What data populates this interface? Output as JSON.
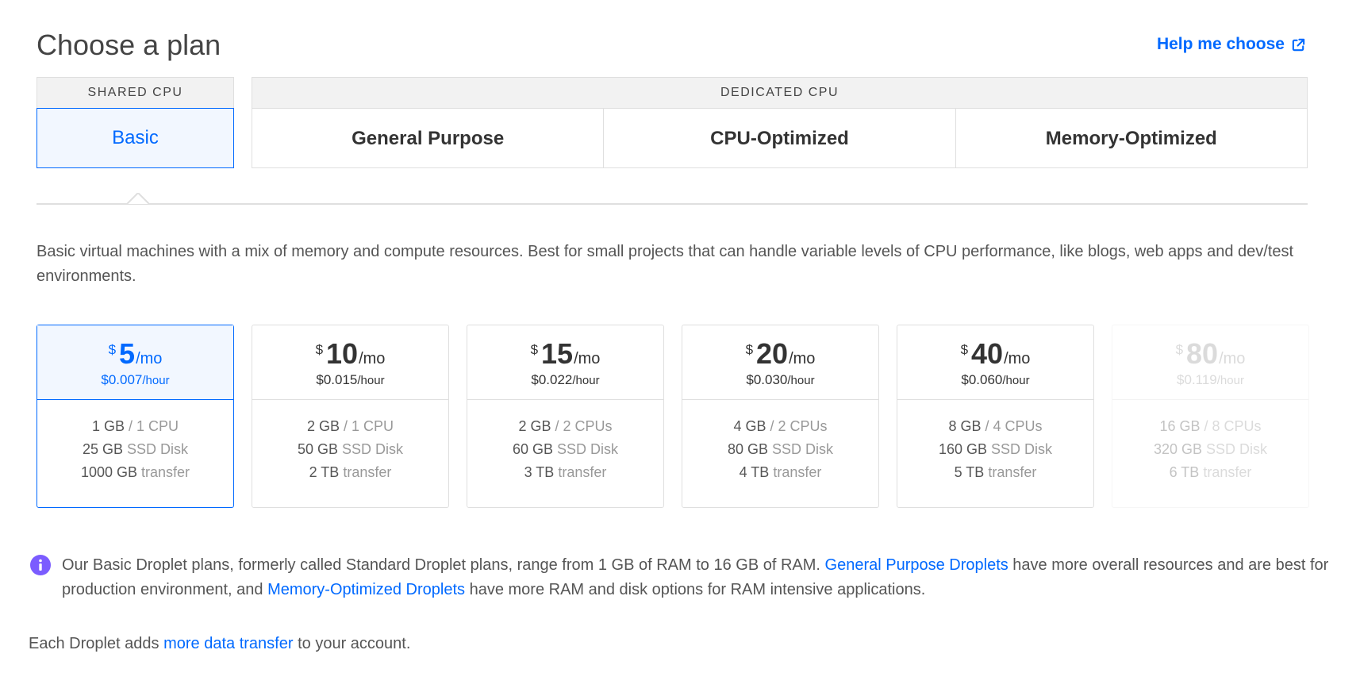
{
  "header": {
    "title": "Choose a plan",
    "help_label": "Help me choose",
    "help_icon": "external-link-icon"
  },
  "categories": {
    "shared": {
      "label": "SHARED CPU",
      "tabs": [
        "Basic"
      ]
    },
    "dedicated": {
      "label": "DEDICATED CPU",
      "tabs": [
        "General Purpose",
        "CPU-Optimized",
        "Memory-Optimized"
      ]
    }
  },
  "selected_tab": "Basic",
  "description": "Basic virtual machines with a mix of memory and compute resources. Best for small projects that can handle variable levels of CPU performance, like blogs, web apps and dev/test environments.",
  "plans": [
    {
      "currency": "$",
      "price": "5",
      "period": "/mo",
      "hourly": "$0.007",
      "hour_unit": "/hour",
      "memory": "1 GB",
      "cpu": "/ 1 CPU",
      "disk": "25 GB",
      "disk_label": "SSD Disk",
      "transfer": "1000 GB",
      "transfer_label": "transfer",
      "state": "selected"
    },
    {
      "currency": "$",
      "price": "10",
      "period": "/mo",
      "hourly": "$0.015",
      "hour_unit": "/hour",
      "memory": "2 GB",
      "cpu": "/ 1 CPU",
      "disk": "50 GB",
      "disk_label": "SSD Disk",
      "transfer": "2 TB",
      "transfer_label": "transfer",
      "state": "default"
    },
    {
      "currency": "$",
      "price": "15",
      "period": "/mo",
      "hourly": "$0.022",
      "hour_unit": "/hour",
      "memory": "2 GB",
      "cpu": "/ 2 CPUs",
      "disk": "60 GB",
      "disk_label": "SSD Disk",
      "transfer": "3 TB",
      "transfer_label": "transfer",
      "state": "default"
    },
    {
      "currency": "$",
      "price": "20",
      "period": "/mo",
      "hourly": "$0.030",
      "hour_unit": "/hour",
      "memory": "4 GB",
      "cpu": "/ 2 CPUs",
      "disk": "80 GB",
      "disk_label": "SSD Disk",
      "transfer": "4 TB",
      "transfer_label": "transfer",
      "state": "default"
    },
    {
      "currency": "$",
      "price": "40",
      "period": "/mo",
      "hourly": "$0.060",
      "hour_unit": "/hour",
      "memory": "8 GB",
      "cpu": "/ 4 CPUs",
      "disk": "160 GB",
      "disk_label": "SSD Disk",
      "transfer": "5 TB",
      "transfer_label": "transfer",
      "state": "default"
    },
    {
      "currency": "$",
      "price": "80",
      "period": "/mo",
      "hourly": "$0.119",
      "hour_unit": "/hour",
      "memory": "16 GB",
      "cpu": "/ 8 CPUs",
      "disk": "320 GB",
      "disk_label": "SSD Disk",
      "transfer": "6 TB",
      "transfer_label": "transfer",
      "state": "disabled"
    }
  ],
  "info": {
    "icon": "info-icon",
    "icon_color": "#7b5cff",
    "text_1": "Our Basic Droplet plans, formerly called Standard Droplet plans, range from 1 GB of RAM to 16 GB of RAM. ",
    "link_1": "General Purpose Droplets",
    "text_2": " have more overall resources and are best for production environment, and ",
    "link_2": "Memory-Optimized Droplets",
    "text_3": " have more RAM and disk options for RAM intensive applications."
  },
  "footer": {
    "text_1": "Each Droplet adds ",
    "link": "more data transfer",
    "text_2": " to your account."
  },
  "colors": {
    "accent": "#0069ff",
    "selected_bg": "#f2f7ff",
    "border": "#dfdfdf"
  }
}
